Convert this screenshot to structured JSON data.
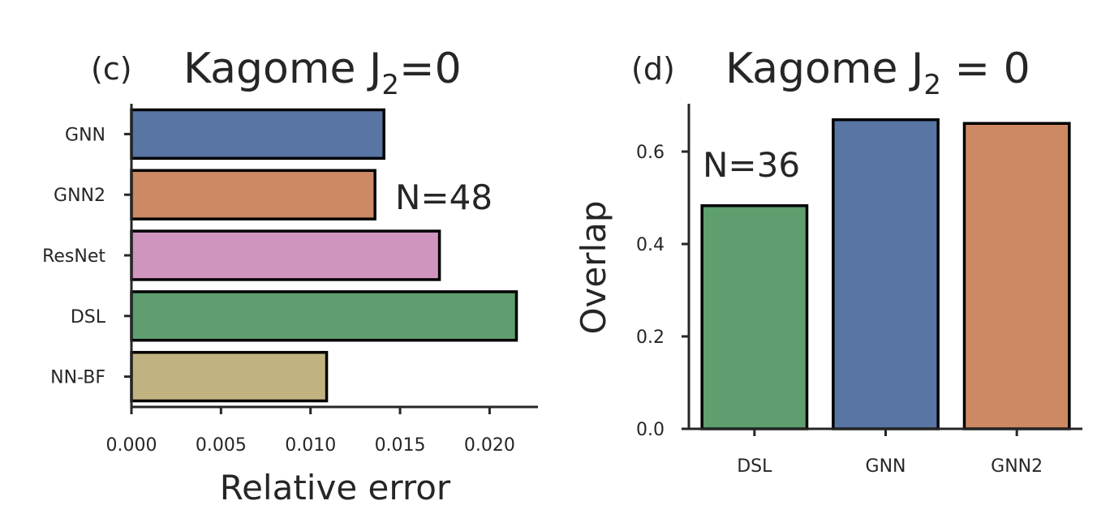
{
  "chart_data": [
    {
      "panel_label": "(c)",
      "type": "bar",
      "orientation": "horizontal",
      "title": "Kagome J",
      "title_subscript": "2",
      "title_suffix": "=0",
      "xlabel": "Relative error",
      "ylabel": "",
      "xlim": [
        0.0,
        0.0227
      ],
      "xticks": [
        "0.000",
        "0.005",
        "0.010",
        "0.015",
        "0.020"
      ],
      "xtick_values": [
        0.0,
        0.005,
        0.01,
        0.015,
        0.02
      ],
      "categories": [
        "GNN",
        "GNN2",
        "ResNet",
        "DSL",
        "NN-BF"
      ],
      "values": [
        0.0141,
        0.0136,
        0.0172,
        0.0215,
        0.0109
      ],
      "colors": [
        "#5875a4",
        "#cc8963",
        "#d095bf",
        "#5f9e6e",
        "#c1b37f"
      ],
      "annotation": "N=48",
      "grid": false
    },
    {
      "panel_label": "(d)",
      "type": "bar",
      "orientation": "vertical",
      "title": "Kagome J",
      "title_subscript": "2",
      "title_suffix": " = 0",
      "xlabel": "",
      "ylabel": "Overlap",
      "ylim": [
        0.0,
        0.7
      ],
      "yticks": [
        "0.0",
        "0.2",
        "0.4",
        "0.6"
      ],
      "ytick_values": [
        0.0,
        0.2,
        0.4,
        0.6
      ],
      "categories": [
        "DSL",
        "GNN",
        "GNN2"
      ],
      "values": [
        0.483,
        0.669,
        0.661
      ],
      "colors": [
        "#5f9e6e",
        "#5875a4",
        "#cc8963"
      ],
      "annotation": "N=36",
      "grid": false
    }
  ]
}
